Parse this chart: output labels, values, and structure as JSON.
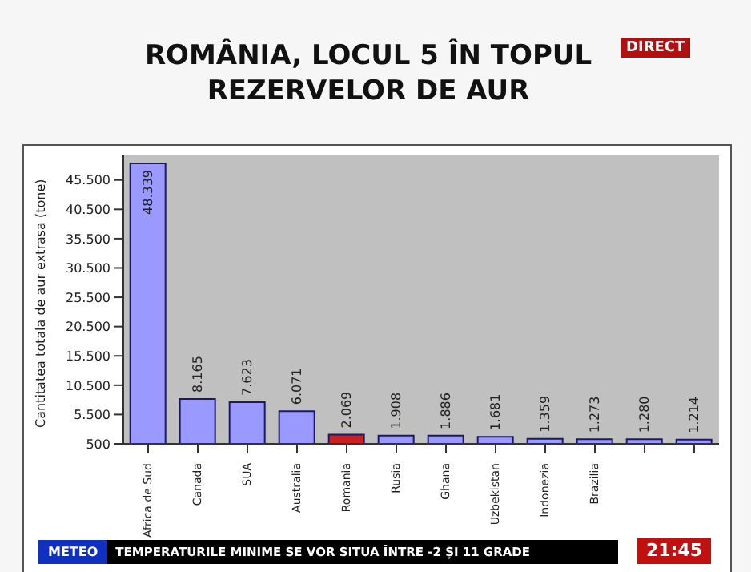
{
  "chart_data": {
    "type": "bar",
    "title": "ROMÂNIA, LOCUL 5 ÎN TOPUL REZERVELOR DE AUR",
    "ylabel": "Cantitatea totala de aur extrasa (tone)",
    "categories": [
      "Africa de Sud",
      "Canada",
      "SUA",
      "Australia",
      "Romania",
      "Rusia",
      "Ghana",
      "Uzbekistan",
      "Indonezia",
      "Brazilia",
      null,
      null
    ],
    "values": [
      48339,
      8165,
      7623,
      6071,
      2069,
      1908,
      1886,
      1681,
      1359,
      1273,
      1280,
      1214
    ],
    "colors": [
      "#9999ff",
      "#9999ff",
      "#9999ff",
      "#9999ff",
      "#cc2020",
      "#9999ff",
      "#9999ff",
      "#9999ff",
      "#9999ff",
      "#9999ff",
      "#9999ff",
      "#9999ff"
    ],
    "value_labels": [
      "48.339",
      "8.165",
      "7.623",
      "6.071",
      "2.069",
      "1.908",
      "1.886",
      "1.681",
      "1.359",
      "1.273",
      "1.280",
      "1.214"
    ],
    "ylim": [
      500,
      49700
    ],
    "yticks": [
      {
        "value": 500,
        "label": "500"
      },
      {
        "value": 5500,
        "label": "5.500"
      },
      {
        "value": 10500,
        "label": "10.500"
      },
      {
        "value": 15500,
        "label": "15.500"
      },
      {
        "value": 20500,
        "label": "20.500"
      },
      {
        "value": 25500,
        "label": "25.500"
      },
      {
        "value": 30500,
        "label": "30.500"
      },
      {
        "value": 35500,
        "label": "35.500"
      },
      {
        "value": 40500,
        "label": "40.500"
      },
      {
        "value": 45500,
        "label": "45.500"
      }
    ],
    "grid": false,
    "legend": false,
    "annotations": [
      "DIRECT",
      "METEO",
      "TEMPERATURILE MINIME SE VOR SITUA ÎNTRE -2 ȘI 11 GRADE",
      "21:45"
    ]
  }
}
